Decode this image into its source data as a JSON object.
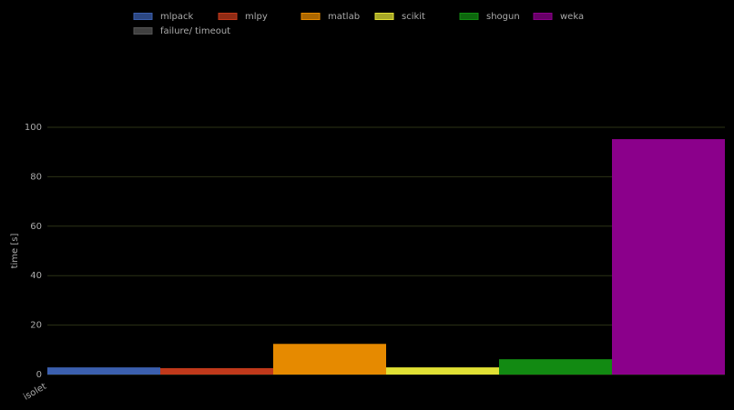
{
  "chart_data": {
    "type": "bar",
    "categories": [
      "isolet"
    ],
    "series": [
      {
        "name": "mlpack",
        "color": "#3b5fae",
        "values": [
          2.9
        ]
      },
      {
        "name": "mlpy",
        "color": "#c0391b",
        "values": [
          2.6
        ]
      },
      {
        "name": "matlab",
        "color": "#e68a00",
        "values": [
          12.4
        ]
      },
      {
        "name": "scikit",
        "color": "#e0e034",
        "values": [
          2.9
        ]
      },
      {
        "name": "shogun",
        "color": "#128a12",
        "values": [
          6.2
        ]
      },
      {
        "name": "weka",
        "color": "#8b008b",
        "values": [
          95.2
        ]
      },
      {
        "name": "failure/ timeout",
        "color": "#555555",
        "values": [
          null
        ]
      }
    ],
    "y_label": "time [s]",
    "ylim": [
      0,
      100
    ],
    "yticks": [
      0,
      20,
      40,
      60,
      80,
      100
    ],
    "grid": true
  }
}
